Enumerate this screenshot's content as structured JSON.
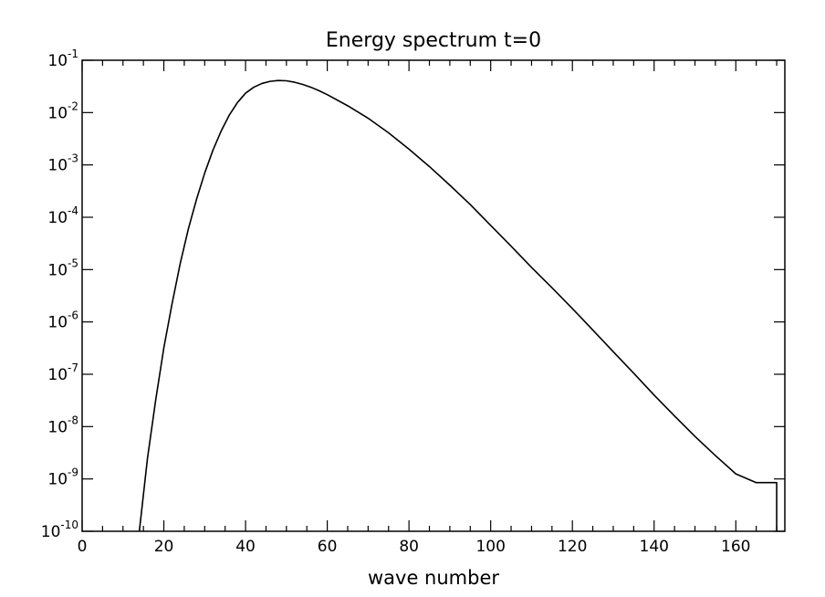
{
  "chart_data": {
    "type": "line",
    "title": "Energy spectrum t=0",
    "xlabel": "wave number",
    "ylabel": "",
    "xlim": [
      0,
      172
    ],
    "ylim_log10": [
      -10,
      -1
    ],
    "yscale": "log",
    "grid": false,
    "legend": "none",
    "x_ticks": [
      0,
      20,
      40,
      60,
      80,
      100,
      120,
      140,
      160
    ],
    "y_ticks": [
      {
        "base": "10",
        "exp": "-1"
      },
      {
        "base": "10",
        "exp": "-2"
      },
      {
        "base": "10",
        "exp": "-3"
      },
      {
        "base": "10",
        "exp": "-4"
      },
      {
        "base": "10",
        "exp": "-5"
      },
      {
        "base": "10",
        "exp": "-6"
      },
      {
        "base": "10",
        "exp": "-7"
      },
      {
        "base": "10",
        "exp": "-8"
      },
      {
        "base": "10",
        "exp": "-9"
      },
      {
        "base": "10",
        "exp": "-10"
      }
    ],
    "series": [
      {
        "color": "#000000",
        "x": [
          14,
          16,
          18,
          20,
          22,
          24,
          26,
          28,
          30,
          32,
          34,
          36,
          38,
          40,
          42,
          44,
          46,
          48,
          50,
          52,
          54,
          56,
          58,
          60,
          65,
          70,
          75,
          80,
          85,
          90,
          95,
          100,
          105,
          110,
          115,
          120,
          125,
          130,
          135,
          140,
          145,
          150,
          155,
          160,
          165,
          170,
          170
        ],
        "y": [
          1e-10,
          2.5e-09,
          3.2e-08,
          3.2e-07,
          2.2e-06,
          1.3e-05,
          6e-05,
          0.00022,
          0.0007,
          0.0019,
          0.0044,
          0.0089,
          0.0155,
          0.0235,
          0.0305,
          0.036,
          0.0395,
          0.041,
          0.0405,
          0.038,
          0.0345,
          0.0305,
          0.0262,
          0.022,
          0.0135,
          0.0078,
          0.0041,
          0.002,
          0.00093,
          0.00041,
          0.000175,
          7e-05,
          2.8e-05,
          1.1e-05,
          4.5e-06,
          1.8e-06,
          7e-07,
          2.7e-07,
          1.05e-07,
          4e-08,
          1.6e-08,
          6.5e-09,
          2.8e-09,
          1.25e-09,
          8.5e-10,
          8.5e-10,
          1e-10
        ]
      }
    ]
  }
}
